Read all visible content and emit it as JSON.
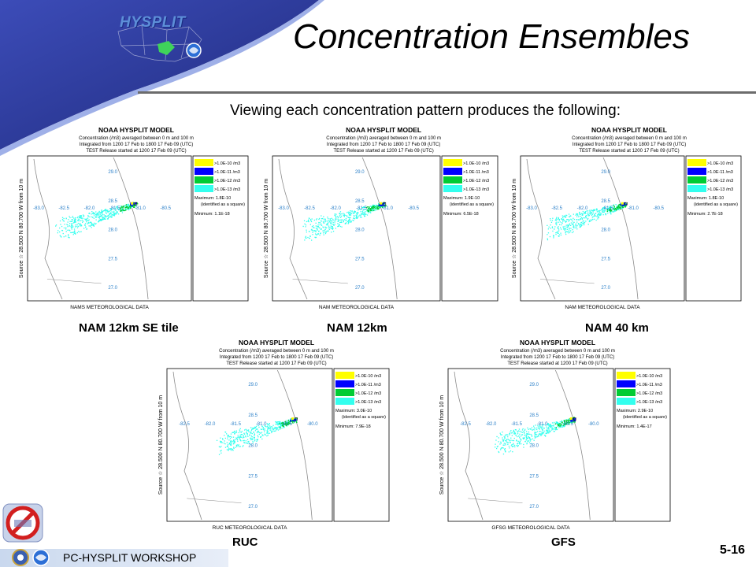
{
  "slide": {
    "logo_text": "HYSPLIT",
    "title": "Concentration Ensembles",
    "subtitle": "Viewing each concentration pattern produces the following:",
    "footer": "PC-HYSPLIT WORKSHOP",
    "page_number": "5-16"
  },
  "colors": {
    "corner_blue": "#2e3a9e",
    "level1": "#ffff00",
    "level2": "#0000ff",
    "level3": "#00cc33",
    "level4": "#33ffee",
    "map_line": "#8a8a8a"
  },
  "panel_common": {
    "header_line1": "NOAA HYSPLIT MODEL",
    "header_line2": "Concentration (/m3) averaged between    0 m and   100 m",
    "header_line3": "Integrated from 1200 17 Feb to 1800 17 Feb 09 (UTC)",
    "header_line4": "TEST Release started at 1200 17 Feb 09 (UTC)",
    "side_label": "Source ☆ 28.500  N  80.700  W     from    10 m",
    "legend": [
      ">1.0E-10 /m3",
      ">1.0E-11 /m3",
      ">1.0E-12 /m3",
      ">1.0E-13 /m3"
    ],
    "identified": "(identified as a square)",
    "lon_labels_5": [
      "-83.0",
      "-82.5",
      "-82.0",
      "-81.5",
      "-81.0",
      "-80.5"
    ],
    "lon_labels_4": [
      "-82.5",
      "-82.0",
      "-81.5",
      "-81.0",
      "-80.5",
      "-80.0"
    ],
    "lat_labels": [
      "29.0",
      "28.5",
      "28.0",
      "27.5",
      "27.0"
    ]
  },
  "panels": [
    {
      "label": "NAM 12km SE tile",
      "footer": "NAMS METEOROLOGICAL DATA",
      "maximum": "Maximum: 1.8E-10",
      "minimum": "Minimum: 1.1E-18"
    },
    {
      "label": "NAM 12km",
      "footer": "NAM METEOROLOGICAL DATA",
      "maximum": "Maximum: 1.9E-10",
      "minimum": "Minimum: 6.5E-18"
    },
    {
      "label": "NAM 40 km",
      "footer": "NAM METEOROLOGICAL DATA",
      "maximum": "Maximum: 1.8E-10",
      "minimum": "Minimum: 2.7E-18"
    },
    {
      "label": "RUC",
      "footer": "RUC METEOROLOGICAL DATA",
      "maximum": "Maximum: 3.0E-10",
      "minimum": "Minimum: 7.9E-18"
    },
    {
      "label": "GFS",
      "footer": "GFSG METEOROLOGICAL DATA",
      "maximum": "Maximum: 2.9E-10",
      "minimum": "Minimum: 1.4E-17"
    }
  ]
}
